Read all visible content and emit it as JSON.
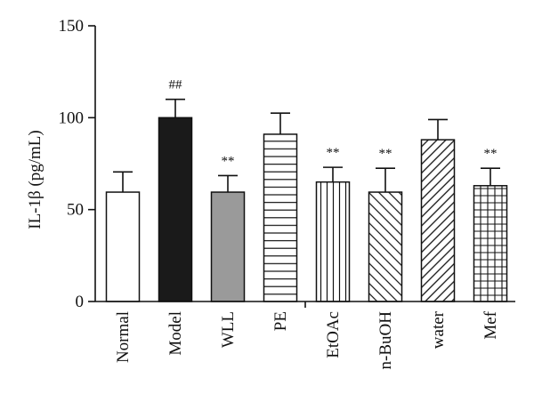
{
  "chart_data": {
    "type": "bar",
    "ylabel": "IL-1β (pg/mL)",
    "ylim": [
      0,
      150
    ],
    "yticks": [
      0,
      50,
      100,
      150
    ],
    "categories": [
      "Normal",
      "Model",
      "WLL",
      "PE",
      "EtOAc",
      "n-BuOH",
      "water",
      "Mef"
    ],
    "values": [
      59.5,
      100,
      59.5,
      91,
      65,
      59.5,
      88,
      63
    ],
    "errors": [
      11,
      10,
      9,
      11.5,
      8,
      13,
      11,
      9.5
    ],
    "annotations": [
      "",
      "##",
      "**",
      "",
      "**",
      "**",
      "",
      "**"
    ],
    "fills": [
      "white",
      "black",
      "gray",
      "horizontal-lines",
      "vertical-lines",
      "diagonal-lines",
      "back-diagonal-lines",
      "grid"
    ],
    "colors": {
      "model": "#1a1a1a",
      "wll": "#9a9a9a",
      "stroke": "#111111"
    }
  }
}
